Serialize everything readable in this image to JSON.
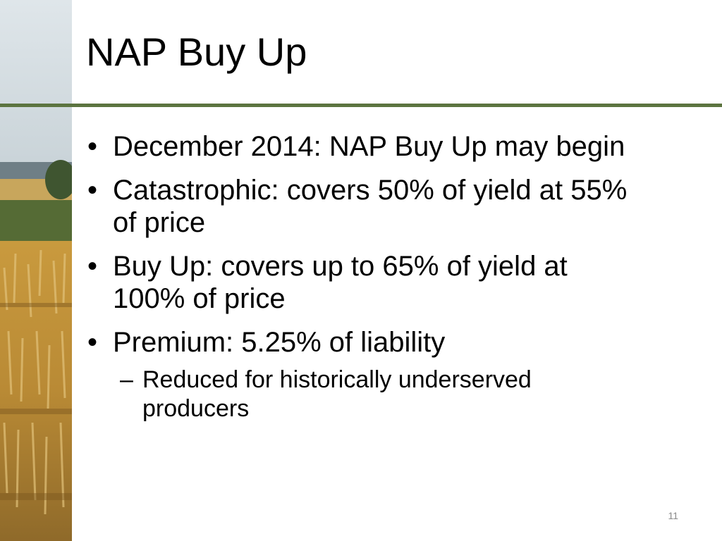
{
  "slide": {
    "title": "NAP Buy Up",
    "bullets": [
      {
        "marker": "•",
        "text": "December 2014: NAP Buy Up may begin"
      },
      {
        "marker": "•",
        "text": "Catastrophic: covers 50% of yield at 55% of price"
      },
      {
        "marker": "•",
        "text": "Buy Up: covers up to 65% of yield at 100% of price"
      },
      {
        "marker": "•",
        "text": "Premium: 5.25% of liability",
        "sub": [
          {
            "marker": "–",
            "text": "Reduced for historically underserved producers"
          }
        ]
      }
    ],
    "page_number": "11"
  },
  "colors": {
    "title_rule": "#5c7440",
    "text": "#000000",
    "page_number": "#8a8a8a"
  },
  "icons": {
    "side_photo": "wheat-field-photo"
  }
}
